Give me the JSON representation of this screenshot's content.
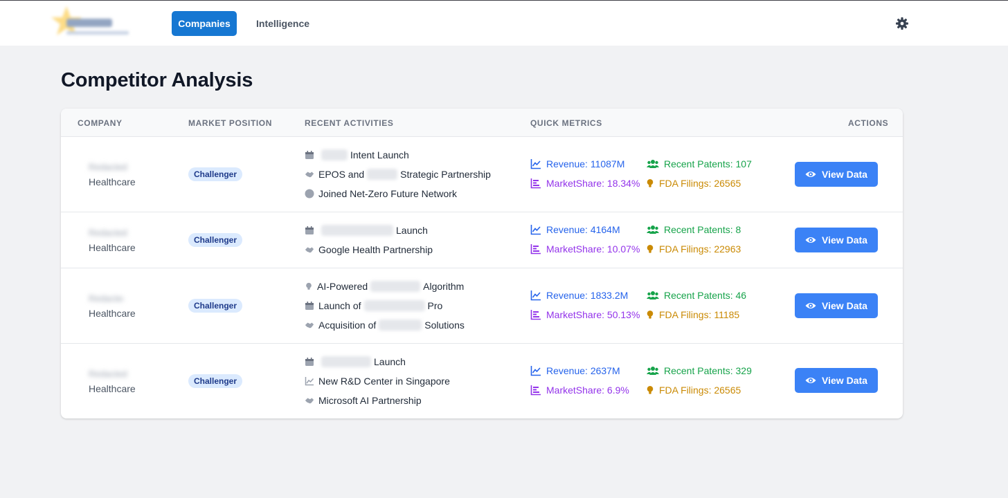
{
  "nav": {
    "tabs": [
      {
        "label": "Companies"
      },
      {
        "label": "Intelligence"
      }
    ]
  },
  "page": {
    "title": "Competitor Analysis"
  },
  "table": {
    "headers": {
      "company": "COMPANY",
      "position": "MARKET POSITION",
      "activities": "RECENT ACTIVITIES",
      "metrics": "QUICK METRICS",
      "actions": "ACTIONS"
    },
    "rows": [
      {
        "company": "Redacted",
        "industry": "Healthcare",
        "position": "Challenger",
        "activities": [
          {
            "icon": "calendar-icon",
            "pre": "",
            "post": "Intent Launch"
          },
          {
            "icon": "handshake-icon",
            "pre": "EPOS and",
            "post": "Strategic Partnership"
          },
          {
            "icon": "circle-icon",
            "pre": "",
            "post": "Joined Net-Zero Future Network"
          }
        ],
        "metrics": {
          "revenue": "Revenue: 11087M",
          "share": "MarketShare: 18.34%",
          "patents": "Recent Patents: 107",
          "fda": "FDA Filings: 26565"
        },
        "action": "View Data"
      },
      {
        "company": "Redacted",
        "industry": "Healthcare",
        "position": "Challenger",
        "activities": [
          {
            "icon": "calendar-icon",
            "pre": "",
            "post": "Launch"
          },
          {
            "icon": "handshake-icon",
            "pre": "",
            "post": "Google Health Partnership"
          }
        ],
        "metrics": {
          "revenue": "Revenue: 4164M",
          "share": "MarketShare: 10.07%",
          "patents": "Recent Patents: 8",
          "fda": "FDA Filings: 22963"
        },
        "action": "View Data"
      },
      {
        "company": "Redacted",
        "industry": "Healthcare",
        "position": "Challenger",
        "activities": [
          {
            "icon": "lightbulb-icon",
            "pre": "AI-Powered",
            "post": "Algorithm"
          },
          {
            "icon": "calendar-icon",
            "pre": "Launch of",
            "post": "Pro"
          },
          {
            "icon": "handshake-icon",
            "pre": "Acquisition of",
            "post": "Solutions"
          }
        ],
        "metrics": {
          "revenue": "Revenue: 1833.2M",
          "share": "MarketShare: 50.13%",
          "patents": "Recent Patents: 46",
          "fda": "FDA Filings: 11185"
        },
        "action": "View Data"
      },
      {
        "company": "Redacted",
        "industry": "Healthcare",
        "position": "Challenger",
        "activities": [
          {
            "icon": "calendar-icon",
            "pre": "",
            "post": "Launch"
          },
          {
            "icon": "chart-line-icon",
            "pre": "",
            "post": "New R&D Center in Singapore"
          },
          {
            "icon": "handshake-icon",
            "pre": "",
            "post": "Microsoft AI Partnership"
          }
        ],
        "metrics": {
          "revenue": "Revenue: 2637M",
          "share": "MarketShare: 6.9%",
          "patents": "Recent Patents: 329",
          "fda": "FDA Filings: 26565"
        },
        "action": "View Data"
      }
    ]
  }
}
